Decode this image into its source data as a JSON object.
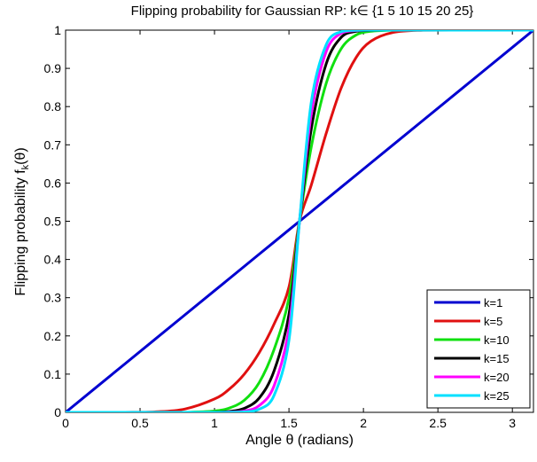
{
  "chart_data": {
    "type": "line",
    "title": "Flipping probability for Gaussian RP: k∈ {1   5  10  15  20  25}",
    "xlabel": "Angle θ (radians)",
    "ylabel": "Flipping probability f",
    "ylabel_sub": "k",
    "ylabel_tail": "(θ)",
    "xlim": [
      0,
      3.1416
    ],
    "ylim": [
      0,
      1
    ],
    "xticks": [
      0,
      0.5,
      1,
      1.5,
      2,
      2.5,
      3
    ],
    "xtick_labels": [
      "0",
      "0.5",
      "1",
      "1.5",
      "2",
      "2.5",
      "3"
    ],
    "yticks": [
      0,
      0.1,
      0.2,
      0.3,
      0.4,
      0.5,
      0.6,
      0.7,
      0.8,
      0.9,
      1
    ],
    "ytick_labels": [
      "0",
      "0.1",
      "0.2",
      "0.3",
      "0.4",
      "0.5",
      "0.6",
      "0.7",
      "0.8",
      "0.9",
      "1"
    ],
    "grid": false,
    "legend_position": "bottom-right",
    "x": [
      0,
      0.2,
      0.4,
      0.6,
      0.8,
      1.0,
      1.1,
      1.2,
      1.3,
      1.4,
      1.5,
      1.5708,
      1.65,
      1.75,
      1.85,
      1.95,
      2.05,
      2.2,
      2.4,
      2.6,
      2.8,
      3.0,
      3.1416
    ],
    "series": [
      {
        "name": "k=1",
        "color": "#0000d0",
        "values": [
          0,
          0.0637,
          0.1273,
          0.191,
          0.2546,
          0.3183,
          0.3501,
          0.382,
          0.4138,
          0.4456,
          0.4775,
          0.5,
          0.5252,
          0.557,
          0.5889,
          0.6207,
          0.6525,
          0.7003,
          0.7639,
          0.8276,
          0.8913,
          0.9549,
          1.0
        ]
      },
      {
        "name": "k=5",
        "color": "#e01010",
        "values": [
          0,
          0.0,
          0.0001,
          0.0013,
          0.0086,
          0.035,
          0.061,
          0.1,
          0.156,
          0.231,
          0.328,
          0.5,
          0.595,
          0.73,
          0.848,
          0.928,
          0.971,
          0.994,
          0.9998,
          1,
          1,
          1,
          1
        ]
      },
      {
        "name": "k=10",
        "color": "#10e010",
        "values": [
          0,
          0,
          0,
          0,
          0.0001,
          0.0035,
          0.0113,
          0.0317,
          0.0778,
          0.1644,
          0.2993,
          0.5,
          0.695,
          0.861,
          0.951,
          0.987,
          0.997,
          0.9999,
          1,
          1,
          1,
          1,
          1
        ]
      },
      {
        "name": "k=15",
        "color": "#000000",
        "values": [
          0,
          0,
          0,
          0,
          0,
          0.0004,
          0.0024,
          0.0105,
          0.0374,
          0.1084,
          0.2562,
          0.5,
          0.742,
          0.912,
          0.981,
          0.997,
          0.9995,
          1,
          1,
          1,
          1,
          1,
          1
        ]
      },
      {
        "name": "k=20",
        "color": "#ff00ff",
        "values": [
          0,
          0,
          0,
          0,
          0,
          0.0001,
          0.0005,
          0.0035,
          0.0176,
          0.0695,
          0.2197,
          0.5,
          0.781,
          0.944,
          0.992,
          0.999,
          1,
          1,
          1,
          1,
          1,
          1,
          1
        ]
      },
      {
        "name": "k=25",
        "color": "#00e0ff",
        "values": [
          0,
          0,
          0,
          0,
          0,
          0,
          0.0001,
          0.0012,
          0.0082,
          0.0444,
          0.1885,
          0.5,
          0.812,
          0.962,
          0.996,
          0.9997,
          1,
          1,
          1,
          1,
          1,
          1,
          1
        ]
      }
    ]
  }
}
